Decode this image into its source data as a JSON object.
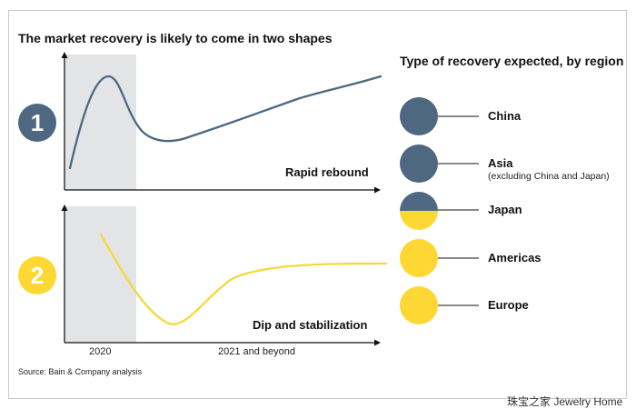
{
  "title": "The market recovery is likely to come in two shapes",
  "legend_title": "Type of recovery expected, by region",
  "colors": {
    "slate": "#4d6880",
    "yellow": "#fdd835",
    "shade": "#e3e4e6",
    "axis": "#111111",
    "line_yellow": "#f6d83a"
  },
  "shapes": [
    {
      "number": "1",
      "label": "Rapid rebound",
      "color": "#4d6880"
    },
    {
      "number": "2",
      "label": "Dip and stabilization",
      "color": "#fdd835"
    }
  ],
  "x_axis": {
    "period_1": "2020",
    "period_2": "2021 and beyond"
  },
  "regions": [
    {
      "name": "China",
      "sub": "",
      "fill": "slate"
    },
    {
      "name": "Asia",
      "sub": "(excluding China and Japan)",
      "fill": "slate"
    },
    {
      "name": "Japan",
      "sub": "",
      "fill": "half"
    },
    {
      "name": "Americas",
      "sub": "",
      "fill": "yellow"
    },
    {
      "name": "Europe",
      "sub": "",
      "fill": "yellow"
    }
  ],
  "source": "Source: Bain & Company analysis",
  "watermark": "珠宝之家  Jewelry Home"
}
